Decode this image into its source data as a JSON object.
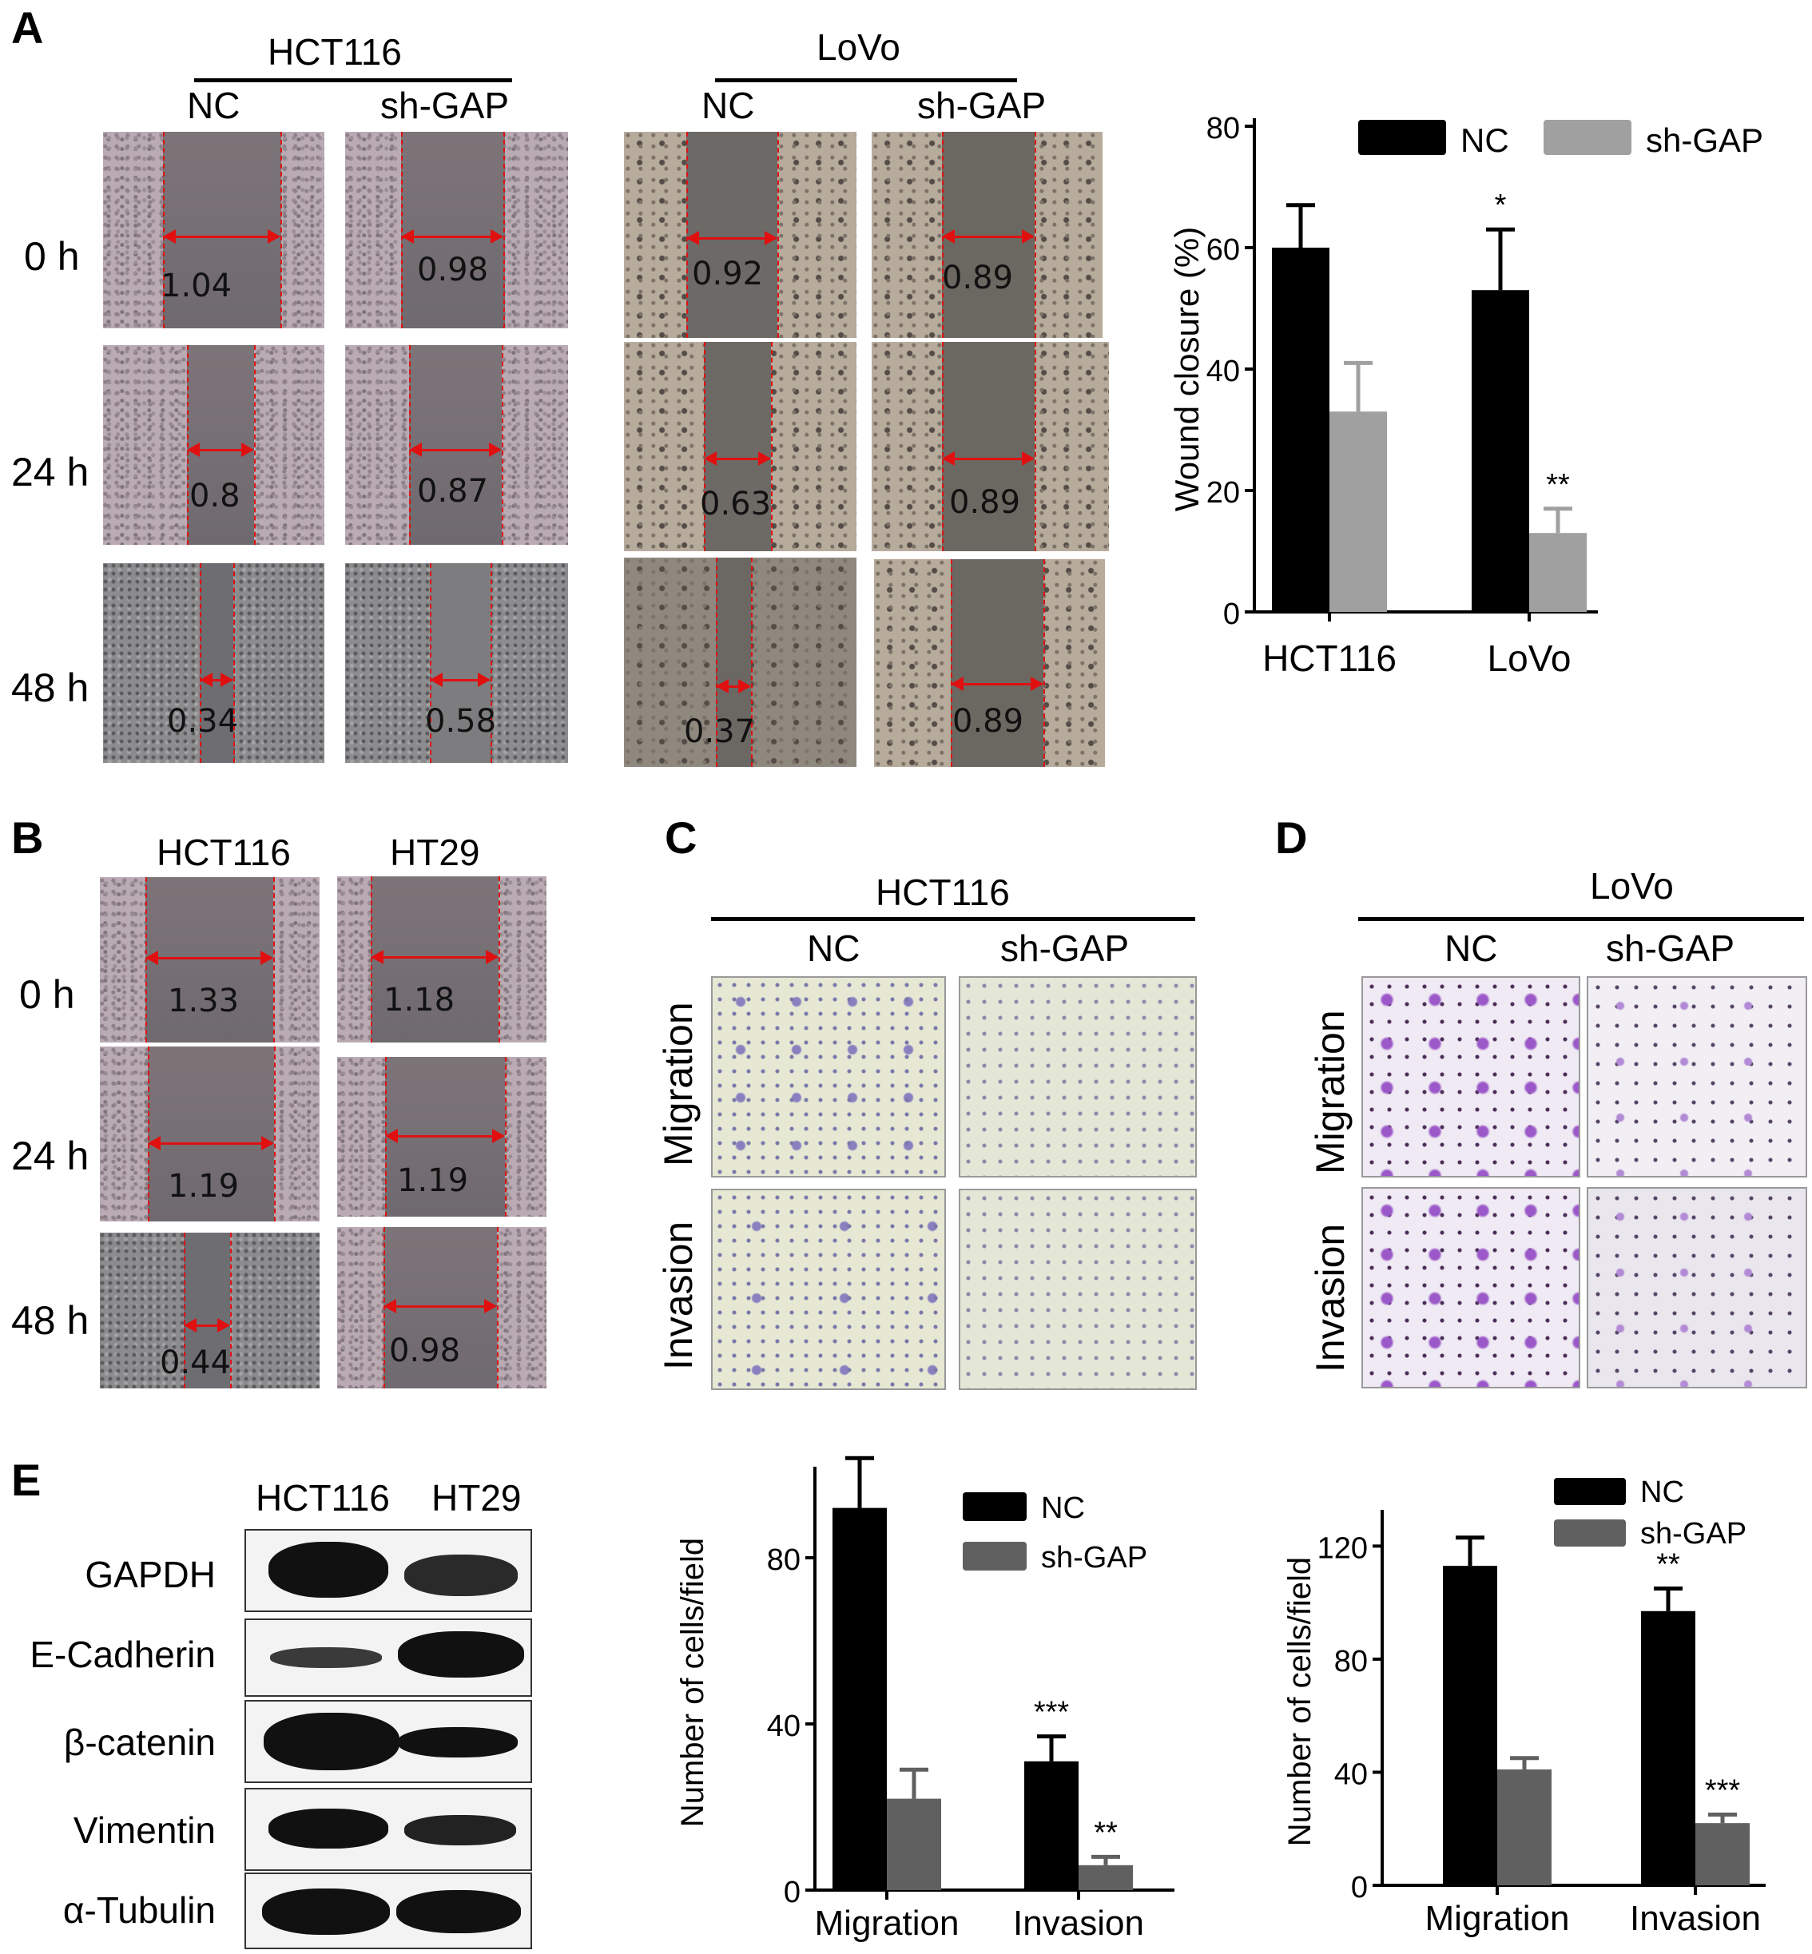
{
  "panel_labels": {
    "A": "A",
    "B": "B",
    "C": "C",
    "D": "D",
    "E": "E"
  },
  "panelA": {
    "groups": [
      {
        "name": "HCT116",
        "columns": [
          "NC",
          "sh-GAP"
        ]
      },
      {
        "name": "LoVo",
        "columns": [
          "NC",
          "sh-GAP"
        ]
      }
    ],
    "time_labels": [
      "0  h",
      "24 h",
      "48 h"
    ],
    "measurements": {
      "hct116_nc": [
        "1.04",
        "0.8",
        "0.34"
      ],
      "hct116_sh": [
        "0.98",
        "0.87",
        "0.58"
      ],
      "lovo_nc": [
        "0.92",
        "0.63",
        "0.37"
      ],
      "lovo_sh": [
        "0.89",
        "0.89",
        "0.89"
      ]
    }
  },
  "panelB": {
    "columns": [
      "HCT116",
      "HT29"
    ],
    "time_labels": [
      "0 h",
      "24 h",
      "48 h"
    ],
    "measurements": {
      "hct116": [
        "1.33",
        "1.19",
        "0.44"
      ],
      "ht29": [
        "1.18",
        "1.19",
        "0.98"
      ]
    }
  },
  "panelC": {
    "title": "HCT116",
    "columns": [
      "NC",
      "sh-GAP"
    ],
    "rows": [
      "Migration",
      "Invasion"
    ]
  },
  "panelD": {
    "title": "LoVo",
    "columns": [
      "NC",
      "sh-GAP"
    ],
    "rows": [
      "Migration",
      "Invasion"
    ]
  },
  "panelE": {
    "columns": [
      "HCT116",
      "HT29"
    ],
    "proteins": [
      "GAPDH",
      "E-Cadherin",
      "β-catenin",
      "Vimentin",
      "α-Tubulin"
    ]
  },
  "chart_data": [
    {
      "type": "bar",
      "categories": [
        "HCT116",
        "LoVo"
      ],
      "series": [
        {
          "name": "NC",
          "values": [
            60,
            53
          ],
          "errors": [
            7,
            10
          ],
          "color": "#000000"
        },
        {
          "name": "sh-GAP",
          "values": [
            33,
            13
          ],
          "errors": [
            8,
            4
          ],
          "color": "#a0a0a0"
        }
      ],
      "significance": [
        [
          "",
          "*"
        ],
        [
          "",
          "**"
        ]
      ],
      "ylabel": "Wound closure (%)",
      "ylim": [
        0,
        80
      ],
      "yticks": [
        0,
        20,
        40,
        60,
        80
      ],
      "legend": "top"
    },
    {
      "type": "bar",
      "categories": [
        "Migration",
        "Invasion"
      ],
      "series": [
        {
          "name": "NC",
          "values": [
            92,
            31
          ],
          "errors": [
            12,
            6
          ],
          "color": "#000000"
        },
        {
          "name": "sh-GAP",
          "values": [
            22,
            6
          ],
          "errors": [
            7,
            2
          ],
          "color": "#606060"
        }
      ],
      "significance": [
        [
          "",
          "***"
        ],
        [
          "",
          "**"
        ]
      ],
      "ylabel": "Number of cells/field",
      "ylim": [
        0,
        100
      ],
      "yticks": [
        0,
        40,
        80
      ],
      "legend": "top-right"
    },
    {
      "type": "bar",
      "categories": [
        "Migration",
        "Invasion"
      ],
      "series": [
        {
          "name": "NC",
          "values": [
            113,
            97
          ],
          "errors": [
            10,
            8
          ],
          "color": "#000000"
        },
        {
          "name": "sh-GAP",
          "values": [
            41,
            22
          ],
          "errors": [
            4,
            3
          ],
          "color": "#606060"
        }
      ],
      "significance": [
        [
          "",
          "**"
        ],
        [
          "",
          "***"
        ]
      ],
      "ylabel": "Number of cells/field",
      "ylim": [
        0,
        130
      ],
      "yticks": [
        0,
        40,
        80,
        120
      ],
      "legend": "top"
    }
  ]
}
